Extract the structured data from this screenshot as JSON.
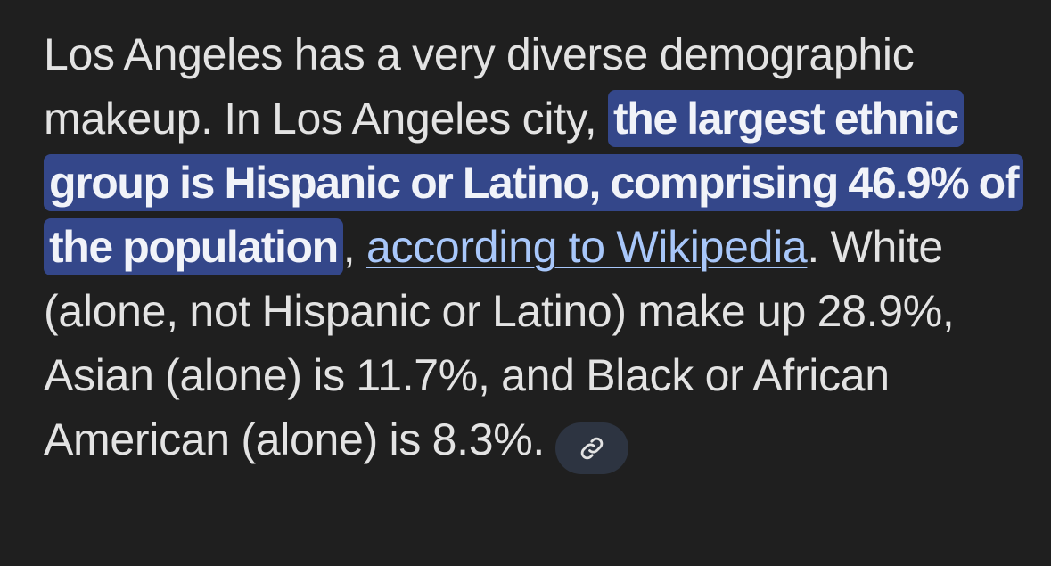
{
  "answer": {
    "before_highlight": "Los Angeles has a very diverse demographic makeup. In Los Angeles city, ",
    "highlight": "the largest ethnic group is Hispanic or Latino, comprising 46.9% of the population",
    "after_highlight": ",",
    "source_link": "according to Wikipedia",
    "after_link": ". White (alone, not Hispanic or Latino) make up 28.9%, Asian (alone) is 11.7%, and Black or African American (alone) is 8.3%.",
    "chip_icon": "link-icon"
  },
  "colors": {
    "background": "#1f1f1f",
    "text": "#e3e3e3",
    "highlight_background": "#34478a",
    "link": "#a8c7fa",
    "chip_background": "#2d3441"
  }
}
